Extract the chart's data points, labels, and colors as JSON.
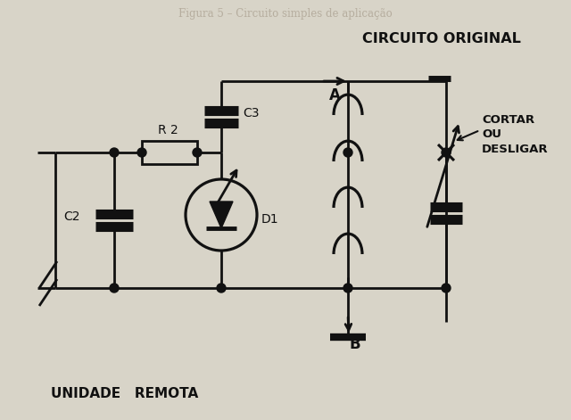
{
  "bg_color": "#d8d4c8",
  "line_color": "#111111",
  "lw": 2.0,
  "label_circuito_original": "CIRCUITO ORIGINAL",
  "label_A": "A",
  "label_B": "B",
  "label_C2": "C2",
  "label_C3": "C3",
  "label_R2": "R 2",
  "label_D1": "D1",
  "label_cortar": "CORTAR\nOU\nDESLIGAR",
  "label_unidade": "UNIDADE   REMOTA",
  "faded_top": "Figura 5 – Circuito simples de aplicação"
}
